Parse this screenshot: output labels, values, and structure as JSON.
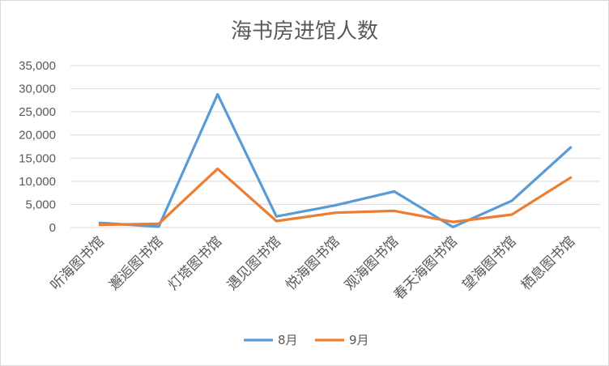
{
  "chart_data": {
    "type": "line",
    "title": "海书房进馆人数",
    "categories": [
      "听海图书馆",
      "邂逅图书馆",
      "灯塔图书馆",
      "遇见图书馆",
      "悦海图书馆",
      "观海图书馆",
      "春天海图书馆",
      "望海图书馆",
      "栖息图书馆"
    ],
    "series": [
      {
        "name": "8月",
        "color": "#5b9bd5",
        "values": [
          1000,
          200,
          28800,
          2400,
          4800,
          7800,
          100,
          5800,
          17300
        ]
      },
      {
        "name": "9月",
        "color": "#ed7d31",
        "values": [
          600,
          800,
          12700,
          1400,
          3200,
          3600,
          1200,
          2800,
          10800
        ]
      }
    ],
    "ylim": [
      0,
      35000
    ],
    "yticks": [
      0,
      5000,
      10000,
      15000,
      20000,
      25000,
      30000,
      35000
    ],
    "ytick_labels": [
      "0",
      "5,000",
      "10,000",
      "15,000",
      "20,000",
      "25,000",
      "30,000",
      "35,000"
    ],
    "grid": true,
    "legend": "bottom",
    "xlabel": "",
    "ylabel": ""
  }
}
